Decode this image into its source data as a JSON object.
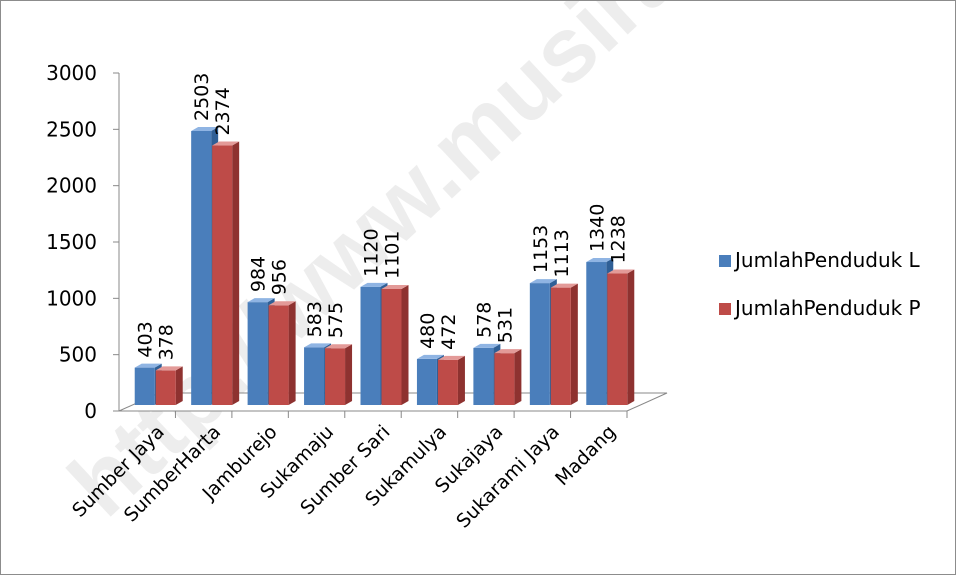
{
  "chart_data": {
    "type": "bar",
    "title": "",
    "xlabel": "",
    "ylabel": "",
    "ylim": [
      0,
      3000
    ],
    "yticks": [
      0,
      500,
      1000,
      1500,
      2000,
      2500,
      3000
    ],
    "categories": [
      "Sumber Jaya",
      "SumberHarta",
      "Jamburejo",
      "Sukamaju",
      "Sumber Sari",
      "Sukamulya",
      "Sukajaya",
      "Sukarami Jaya",
      "Madang"
    ],
    "series": [
      {
        "name": "JumlahPenduduk L",
        "color": "#4a7ebb",
        "values": [
          403,
          2503,
          984,
          583,
          1120,
          480,
          578,
          1153,
          1340
        ]
      },
      {
        "name": "JumlahPenduduk P",
        "color": "#be4b48",
        "values": [
          378,
          2374,
          956,
          575,
          1101,
          472,
          531,
          1113,
          1238
        ]
      }
    ],
    "legend_position": "right",
    "grid": false,
    "style": "3d-clustered-column"
  },
  "watermark": "http://www.musirawaskab"
}
